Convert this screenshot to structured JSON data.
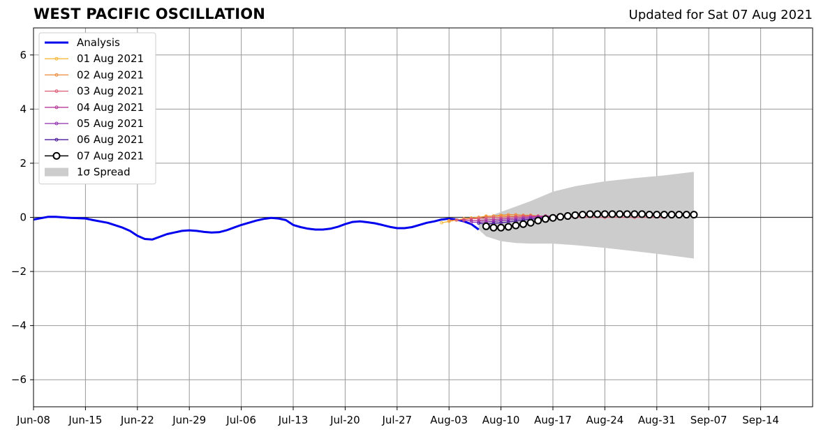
{
  "header": {
    "title": "WEST PACIFIC OSCILLATION",
    "updated": "Updated for Sat 07 Aug 2021"
  },
  "chart_data": {
    "type": "line",
    "title": "WEST PACIFIC OSCILLATION",
    "subtitle": "Updated for Sat 07 Aug 2021",
    "x_type": "date",
    "xlim": [
      "2021-06-08",
      "2021-09-21"
    ],
    "ylim": [
      -7,
      7
    ],
    "x_ticks": [
      "2021-06-08",
      "2021-06-15",
      "2021-06-22",
      "2021-06-29",
      "2021-07-06",
      "2021-07-13",
      "2021-07-20",
      "2021-07-27",
      "2021-08-03",
      "2021-08-10",
      "2021-08-17",
      "2021-08-24",
      "2021-08-31",
      "2021-09-07",
      "2021-09-14"
    ],
    "x_tick_labels": [
      "Jun-08",
      "Jun-15",
      "Jun-22",
      "Jun-29",
      "Jul-06",
      "Jul-13",
      "Jul-20",
      "Jul-27",
      "Aug-03",
      "Aug-10",
      "Aug-17",
      "Aug-24",
      "Aug-31",
      "Sep-07",
      "Sep-14"
    ],
    "y_ticks": [
      6,
      4,
      2,
      0,
      -2,
      -4,
      -6
    ],
    "y_tick_labels": [
      "6",
      "4",
      "2",
      "0",
      "−2",
      "−4",
      "−6"
    ],
    "grid": true,
    "zero_line": true,
    "legend_position": "top-left",
    "series": [
      {
        "name": "Analysis",
        "color": "#0000ee",
        "style": "thick-line",
        "x": [
          "2021-06-08",
          "2021-06-10",
          "2021-06-11",
          "2021-06-13",
          "2021-06-15",
          "2021-06-16",
          "2021-06-18",
          "2021-06-20",
          "2021-06-21",
          "2021-06-22",
          "2021-06-23",
          "2021-06-24",
          "2021-06-25",
          "2021-06-26",
          "2021-06-27",
          "2021-06-28",
          "2021-06-29",
          "2021-06-30",
          "2021-07-01",
          "2021-07-02",
          "2021-07-03",
          "2021-07-04",
          "2021-07-05",
          "2021-07-06",
          "2021-07-08",
          "2021-07-09",
          "2021-07-10",
          "2021-07-11",
          "2021-07-12",
          "2021-07-13",
          "2021-07-14",
          "2021-07-15",
          "2021-07-16",
          "2021-07-17",
          "2021-07-18",
          "2021-07-19",
          "2021-07-20",
          "2021-07-21",
          "2021-07-22",
          "2021-07-23",
          "2021-07-24",
          "2021-07-25",
          "2021-07-26",
          "2021-07-27",
          "2021-07-28",
          "2021-07-29",
          "2021-07-30",
          "2021-07-31",
          "2021-08-01",
          "2021-08-02",
          "2021-08-03",
          "2021-08-04",
          "2021-08-05",
          "2021-08-06",
          "2021-08-07"
        ],
        "values": [
          -0.08,
          0.02,
          0.02,
          -0.02,
          -0.04,
          -0.1,
          -0.2,
          -0.38,
          -0.5,
          -0.68,
          -0.8,
          -0.82,
          -0.72,
          -0.62,
          -0.56,
          -0.5,
          -0.48,
          -0.5,
          -0.54,
          -0.56,
          -0.55,
          -0.48,
          -0.38,
          -0.28,
          -0.12,
          -0.06,
          -0.02,
          -0.04,
          -0.1,
          -0.28,
          -0.36,
          -0.42,
          -0.45,
          -0.45,
          -0.42,
          -0.35,
          -0.25,
          -0.17,
          -0.15,
          -0.18,
          -0.22,
          -0.28,
          -0.35,
          -0.4,
          -0.4,
          -0.36,
          -0.28,
          -0.2,
          -0.15,
          -0.08,
          -0.05,
          -0.08,
          -0.15,
          -0.25,
          -0.45
        ]
      },
      {
        "name": "01 Aug 2021",
        "color": "#f5b83c",
        "style": "small-marker-line",
        "x": [
          "2021-08-02",
          "2021-08-03",
          "2021-08-04",
          "2021-08-05",
          "2021-08-06",
          "2021-08-07",
          "2021-08-08",
          "2021-08-09",
          "2021-08-10",
          "2021-08-11",
          "2021-08-12",
          "2021-08-13",
          "2021-08-14",
          "2021-08-15",
          "2021-08-16",
          "2021-08-17"
        ],
        "values": [
          -0.2,
          -0.15,
          -0.1,
          -0.05,
          -0.02,
          0.0,
          0.05,
          0.05,
          0.05,
          0.05,
          0.05,
          0.05,
          0.05,
          0.05,
          0.05,
          0.05
        ]
      },
      {
        "name": "02 Aug 2021",
        "color": "#ef8a3c",
        "style": "small-marker-line",
        "x": [
          "2021-08-03",
          "2021-08-04",
          "2021-08-05",
          "2021-08-06",
          "2021-08-07",
          "2021-08-08",
          "2021-08-09",
          "2021-08-10",
          "2021-08-11",
          "2021-08-12",
          "2021-08-13",
          "2021-08-14",
          "2021-08-15",
          "2021-08-16",
          "2021-08-17"
        ],
        "values": [
          -0.12,
          -0.1,
          -0.08,
          -0.05,
          0.0,
          0.03,
          0.05,
          0.08,
          0.1,
          0.1,
          0.08,
          0.08,
          0.05,
          0.05,
          0.05
        ]
      },
      {
        "name": "03 Aug 2021",
        "color": "#dc5b74",
        "style": "small-marker-line",
        "x": [
          "2021-08-04",
          "2021-08-05",
          "2021-08-06",
          "2021-08-07",
          "2021-08-08",
          "2021-08-09",
          "2021-08-10",
          "2021-08-11",
          "2021-08-12",
          "2021-08-13",
          "2021-08-14",
          "2021-08-15",
          "2021-08-16",
          "2021-08-17",
          "2021-08-20",
          "2021-08-24",
          "2021-08-28",
          "2021-09-01"
        ],
        "values": [
          -0.1,
          -0.08,
          -0.05,
          -0.05,
          -0.02,
          0.0,
          0.0,
          0.02,
          0.03,
          0.05,
          0.05,
          0.05,
          0.05,
          0.05,
          0.0,
          0.0,
          0.0,
          0.0
        ]
      },
      {
        "name": "04 Aug 2021",
        "color": "#b73a9a",
        "style": "small-marker-line",
        "x": [
          "2021-08-05",
          "2021-08-06",
          "2021-08-07",
          "2021-08-08",
          "2021-08-09",
          "2021-08-10",
          "2021-08-11",
          "2021-08-12",
          "2021-08-13",
          "2021-08-14",
          "2021-08-15",
          "2021-08-16",
          "2021-08-17"
        ],
        "values": [
          -0.12,
          -0.12,
          -0.12,
          -0.1,
          -0.08,
          -0.06,
          -0.04,
          -0.02,
          0.0,
          0.02,
          0.03,
          0.05,
          0.05
        ]
      },
      {
        "name": "05 Aug 2021",
        "color": "#8f2bb0",
        "style": "small-marker-line",
        "x": [
          "2021-08-06",
          "2021-08-07",
          "2021-08-08",
          "2021-08-09",
          "2021-08-10",
          "2021-08-11",
          "2021-08-12",
          "2021-08-13",
          "2021-08-14",
          "2021-08-15",
          "2021-08-16",
          "2021-08-17"
        ],
        "values": [
          -0.18,
          -0.18,
          -0.17,
          -0.15,
          -0.12,
          -0.1,
          -0.08,
          -0.05,
          -0.02,
          0.0,
          0.02,
          0.03
        ]
      },
      {
        "name": "06 Aug 2021",
        "color": "#4a1a9c",
        "style": "small-marker-line",
        "x": [
          "2021-08-07",
          "2021-08-08",
          "2021-08-09",
          "2021-08-10",
          "2021-08-11",
          "2021-08-12",
          "2021-08-13",
          "2021-08-14",
          "2021-08-15",
          "2021-08-16",
          "2021-08-17"
        ],
        "values": [
          -0.22,
          -0.25,
          -0.22,
          -0.2,
          -0.17,
          -0.14,
          -0.1,
          -0.07,
          -0.04,
          -0.01,
          0.02
        ]
      },
      {
        "name": "07 Aug 2021",
        "color": "#000000",
        "style": "open-circle-line",
        "x": [
          "2021-08-08",
          "2021-08-09",
          "2021-08-10",
          "2021-08-11",
          "2021-08-12",
          "2021-08-13",
          "2021-08-14",
          "2021-08-15",
          "2021-08-16",
          "2021-08-17",
          "2021-08-18",
          "2021-08-19",
          "2021-08-20",
          "2021-08-21",
          "2021-08-22",
          "2021-08-23",
          "2021-08-24",
          "2021-08-25",
          "2021-08-26",
          "2021-08-27",
          "2021-08-28",
          "2021-08-29",
          "2021-08-30",
          "2021-08-31",
          "2021-09-01",
          "2021-09-02",
          "2021-09-03",
          "2021-09-04",
          "2021-09-05"
        ],
        "values": [
          -0.33,
          -0.38,
          -0.38,
          -0.35,
          -0.3,
          -0.25,
          -0.2,
          -0.12,
          -0.06,
          -0.02,
          0.02,
          0.05,
          0.08,
          0.1,
          0.12,
          0.12,
          0.12,
          0.12,
          0.12,
          0.12,
          0.12,
          0.12,
          0.1,
          0.1,
          0.1,
          0.1,
          0.1,
          0.1,
          0.1
        ]
      }
    ],
    "spread": {
      "name": "1σ Spread",
      "color": "#cccccc",
      "x": [
        "2021-08-07",
        "2021-08-08",
        "2021-08-10",
        "2021-08-12",
        "2021-08-14",
        "2021-08-17",
        "2021-08-20",
        "2021-08-24",
        "2021-08-28",
        "2021-09-01",
        "2021-09-05"
      ],
      "upper": [
        -0.1,
        0.0,
        0.2,
        0.4,
        0.6,
        0.95,
        1.15,
        1.33,
        1.45,
        1.55,
        1.68
      ],
      "lower": [
        -0.45,
        -0.7,
        -0.88,
        -0.95,
        -0.97,
        -0.97,
        -1.03,
        -1.13,
        -1.25,
        -1.38,
        -1.52
      ]
    }
  }
}
